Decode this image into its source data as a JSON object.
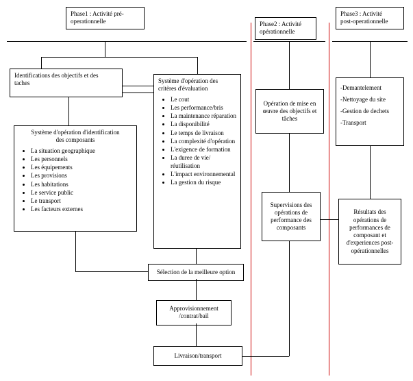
{
  "colors": {
    "line": "#000000",
    "separator": "#cc0000",
    "background": "#ffffff",
    "text": "#000000"
  },
  "phase1": {
    "title": "Phase1 : Activité pré-\noperationnelle"
  },
  "phase2": {
    "title": "Phase2 : Activité\nopérationnelle"
  },
  "phase3": {
    "title": "Phase3 : Activité\npost-operationnelle"
  },
  "b_ident": {
    "title": "Identifications des objectifs et des\ntaches"
  },
  "b_sys_ident": {
    "title": "Système d'opération d'identification\ndes composants",
    "items": [
      "La situation geographique",
      "Les personnels",
      "Les équipements",
      "Les provisions",
      "Les habitations",
      "Le service public",
      "Le transport",
      "Les facteurs externes"
    ]
  },
  "b_criteres": {
    "title": "Système d'opération des\ncritères d'évaluation",
    "items": [
      "Le cout",
      "Les performance/bris",
      "La maintenance réparation",
      "La disponibilité",
      "Le temps de livraison",
      "La complexité d'opération",
      "L'exigence de formation",
      "La duree de vie/ réutilisation",
      "L'impact environnemental",
      "La gestion du risque"
    ]
  },
  "b_select": {
    "title": "Sélection de la meilleure option"
  },
  "b_approv": {
    "title": "Approvisionnement\n/contrat/bail"
  },
  "b_livr": {
    "title": "Livraison/transport"
  },
  "b_oper": {
    "title": "Opération de mise en\nœuvre des objectifs et\ntâches"
  },
  "b_superv": {
    "title": "Supervisions des\nopérations de\nperformance des\ncomposants"
  },
  "b_post_list": {
    "items": [
      "-Demantelement",
      "-Nettoyage du site",
      "-Gestion de dechets",
      "-Transport"
    ]
  },
  "b_result": {
    "title": "Résultats des\nopérations de\nperformances de\ncomposant et\nd'experiences post-\nopérationnelles"
  }
}
